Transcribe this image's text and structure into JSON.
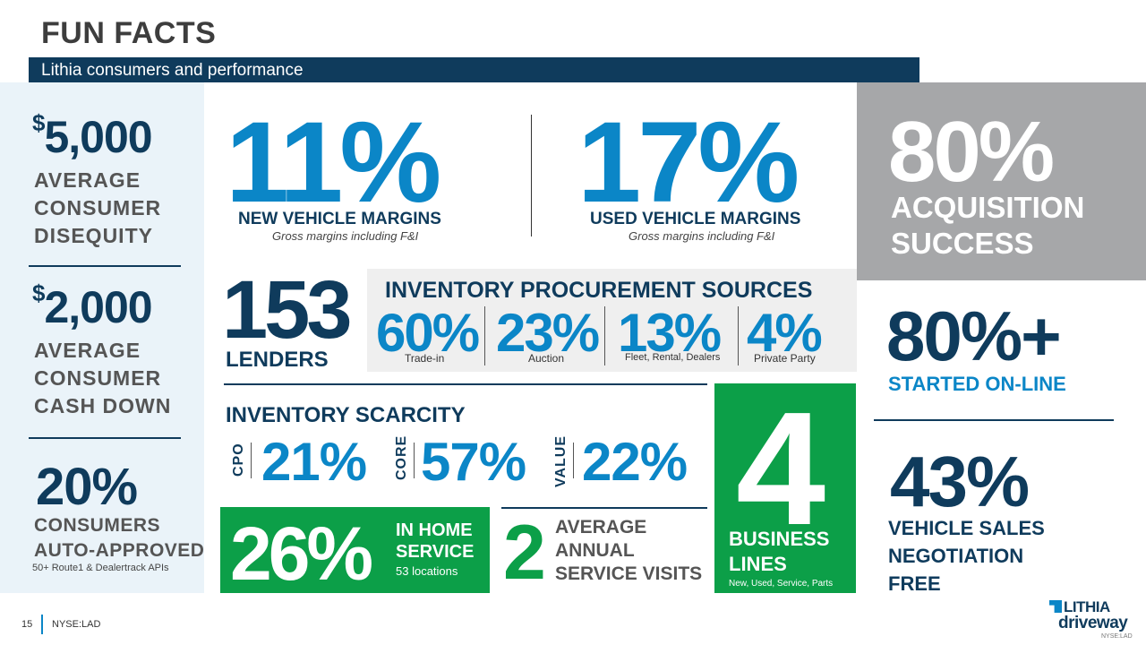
{
  "header": {
    "title": "FUN FACTS",
    "subtitle": "Lithia consumers and performance"
  },
  "left": {
    "stat1": {
      "currency": "$",
      "value": "5,000",
      "label_lines": [
        "AVERAGE",
        "CONSUMER",
        "DISEQUITY"
      ]
    },
    "stat2": {
      "currency": "$",
      "value": "2,000",
      "label_lines": [
        "AVERAGE",
        "CONSUMER",
        "CASH DOWN"
      ]
    },
    "stat3": {
      "value": "20%",
      "label_lines": [
        "CONSUMERS",
        "AUTO-APPROVED"
      ],
      "note": "50+ Route1 & Dealertrack APIs"
    }
  },
  "margins": {
    "new": {
      "value": "11%",
      "label": "NEW VEHICLE MARGINS",
      "note": "Gross margins including F&I"
    },
    "used": {
      "value": "17%",
      "label": "USED VEHICLE MARGINS",
      "note": "Gross margins including F&I"
    }
  },
  "acquisition": {
    "value": "80%",
    "label_lines": [
      "ACQUISITION",
      "SUCCESS"
    ]
  },
  "lenders": {
    "value": "153",
    "label": "LENDERS"
  },
  "procurement": {
    "title": "INVENTORY PROCUREMENT SOURCES",
    "items": [
      {
        "value": "60%",
        "label": "Trade-in"
      },
      {
        "value": "23%",
        "label": "Auction"
      },
      {
        "value": "13%",
        "label": "Fleet, Rental, Dealers"
      },
      {
        "value": "4%",
        "label": "Private Party"
      }
    ]
  },
  "online": {
    "value": "80%+",
    "label": "STARTED ON-LINE"
  },
  "scarcity": {
    "title": "INVENTORY SCARCITY",
    "items": [
      {
        "label": "CPO",
        "value": "21%"
      },
      {
        "label": "CORE",
        "value": "57%"
      },
      {
        "label": "VALUE",
        "value": "22%"
      }
    ]
  },
  "home_service": {
    "value": "26%",
    "label_lines": [
      "IN HOME",
      "SERVICE"
    ],
    "note": "53 locations"
  },
  "service_visits": {
    "value": "2",
    "label_lines": [
      "AVERAGE",
      "ANNUAL",
      "SERVICE VISITS"
    ]
  },
  "business_lines": {
    "value": "4",
    "label_lines": [
      "BUSINESS",
      "LINES"
    ],
    "note": "New, Used, Service, Parts"
  },
  "negotiation": {
    "value": "43%",
    "label_lines": [
      "VEHICLE SALES",
      "NEGOTIATION",
      "FREE"
    ]
  },
  "footer": {
    "page": "15",
    "ticker": "NYSE:LAD"
  },
  "logo": {
    "line1": "LITHIA",
    "line2": "driveway",
    "line3": "NYSE:LAD"
  },
  "colors": {
    "navy": "#0f3b5c",
    "blue": "#0b86c7",
    "green": "#0c9f48",
    "gray": "#a6a7a9",
    "light_panel": "#eaf3f9"
  }
}
